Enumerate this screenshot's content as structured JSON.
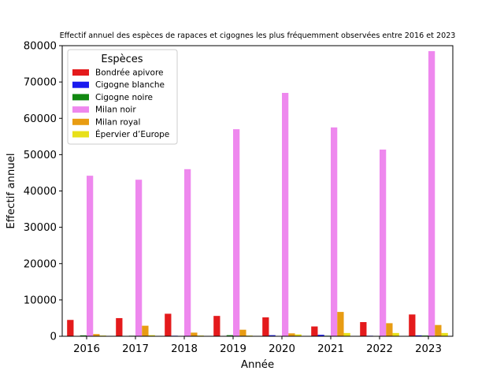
{
  "chart_data": {
    "type": "bar",
    "title": "Effectif annuel des espèces de rapaces et cigognes les plus fréquemment observées entre 2016 et 2023",
    "xlabel": "Année",
    "ylabel": "Effectif annuel",
    "ylim": [
      0,
      80000
    ],
    "yticks": [
      0,
      10000,
      20000,
      30000,
      40000,
      50000,
      60000,
      70000,
      80000
    ],
    "grid": false,
    "legend": {
      "title": "Espèces",
      "placement": "top-left"
    },
    "categories": [
      "2016",
      "2017",
      "2018",
      "2019",
      "2020",
      "2021",
      "2022",
      "2023"
    ],
    "series": [
      {
        "name": "Bondrée apivore",
        "color": "#e41a1c",
        "values": [
          4500,
          5000,
          6200,
          5600,
          5200,
          2700,
          3900,
          6000
        ]
      },
      {
        "name": "Cigogne blanche",
        "color": "#1a1aee",
        "values": [
          50,
          80,
          150,
          100,
          300,
          400,
          150,
          250
        ]
      },
      {
        "name": "Cigogne noire",
        "color": "#118811",
        "values": [
          250,
          150,
          100,
          300,
          100,
          150,
          100,
          200
        ]
      },
      {
        "name": "Milan noir",
        "color": "#ee88ee",
        "values": [
          44200,
          43100,
          46000,
          57000,
          67000,
          57500,
          51400,
          78500
        ]
      },
      {
        "name": "Milan royal",
        "color": "#e89c12",
        "values": [
          600,
          2900,
          1000,
          1800,
          800,
          6700,
          3600,
          3100
        ]
      },
      {
        "name": "Épervier d’Europe",
        "color": "#e8e01a",
        "values": [
          200,
          300,
          200,
          200,
          500,
          900,
          900,
          900
        ]
      }
    ]
  }
}
